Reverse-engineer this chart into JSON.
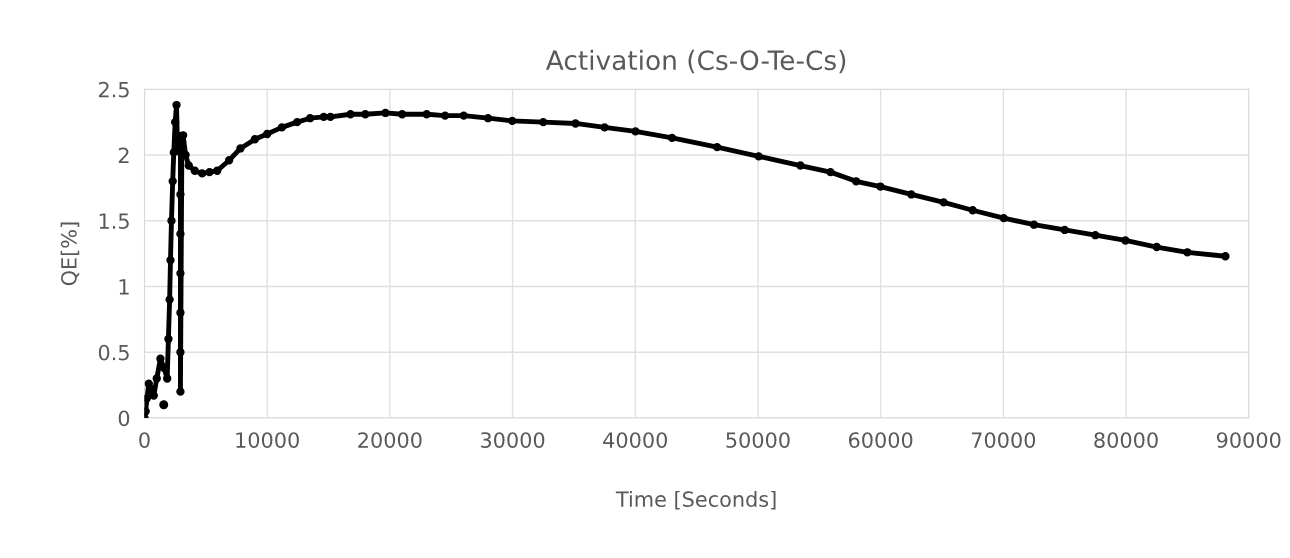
{
  "chart_data": {
    "type": "scatter",
    "title": "Activation (Cs-O-Te-Cs)",
    "xlabel": "Time [Seconds]",
    "ylabel": "QE[%]",
    "xlim": [
      0,
      90000
    ],
    "xticks": [
      0,
      10000,
      20000,
      30000,
      40000,
      50000,
      60000,
      70000,
      80000,
      90000
    ],
    "ylim": [
      0,
      2.5
    ],
    "yticks": [
      0,
      0.5,
      1,
      1.5,
      2,
      2.5
    ],
    "grid": true,
    "marker": "circle",
    "series": [
      {
        "color": "#000000",
        "type": "line",
        "x": [
          0,
          100,
          200,
          350,
          500,
          760,
          1000,
          1300,
          1600,
          1850,
          1950,
          2050,
          2120,
          2200,
          2300,
          2390,
          2500,
          2610,
          2670,
          2800,
          2930,
          2930,
          2930,
          2930,
          2930,
          2930,
          2930,
          3050,
          3150,
          3350,
          3610,
          4100,
          4700,
          5300,
          5930,
          6900,
          7820,
          9000,
          10000,
          11200,
          12440,
          13500,
          14610,
          15160,
          16790,
          18000,
          19640,
          21000,
          23000,
          24500,
          26020,
          28000,
          29970,
          32500,
          35130,
          37500,
          40020,
          43000,
          46670,
          50060,
          53460,
          55910,
          58000,
          59980,
          62500,
          65140,
          67500,
          70030,
          72500,
          75000,
          77500,
          79950,
          82500,
          85000,
          88100
        ],
        "values": [
          0,
          0.05,
          0.15,
          0.26,
          0.22,
          0.17,
          0.3,
          0.45,
          0.38,
          0.3,
          0.6,
          0.9,
          1.2,
          1.5,
          1.8,
          2.02,
          2.25,
          2.38,
          2.15,
          2.05,
          2.02,
          1.7,
          1.4,
          1.1,
          0.8,
          0.5,
          0.2,
          2.1,
          2.15,
          2.0,
          1.92,
          1.88,
          1.86,
          1.87,
          1.88,
          1.96,
          2.05,
          2.12,
          2.16,
          2.21,
          2.25,
          2.28,
          2.29,
          2.29,
          2.31,
          2.31,
          2.32,
          2.31,
          2.31,
          2.3,
          2.3,
          2.28,
          2.26,
          2.25,
          2.24,
          2.21,
          2.18,
          2.13,
          2.06,
          1.99,
          1.92,
          1.87,
          1.8,
          1.76,
          1.7,
          1.64,
          1.58,
          1.52,
          1.47,
          1.43,
          1.39,
          1.35,
          1.3,
          1.26,
          1.23
        ]
      },
      {
        "color": "#000000",
        "x": [
          1570
        ],
        "values": [
          0.1
        ]
      }
    ]
  }
}
